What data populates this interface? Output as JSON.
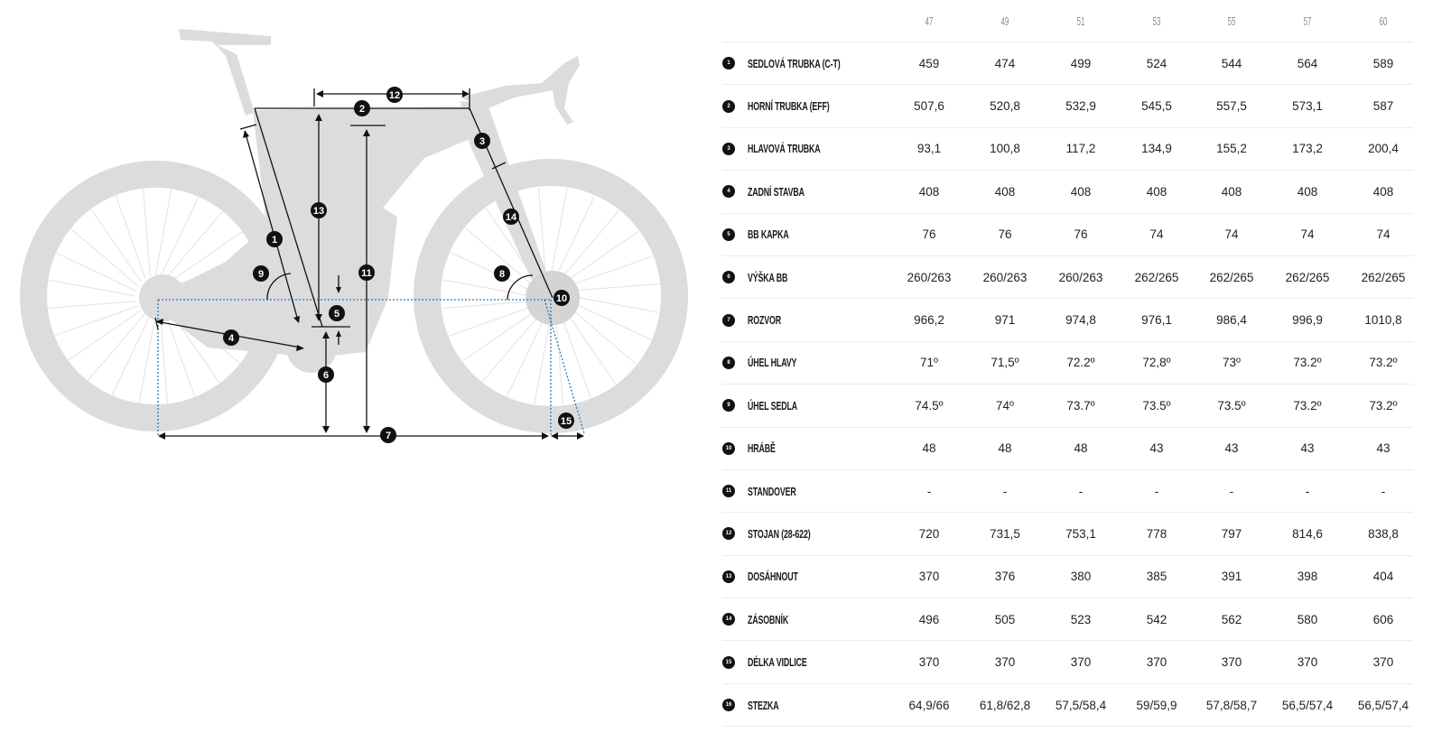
{
  "diagram": {
    "markers": [
      "1",
      "2",
      "3",
      "4",
      "5",
      "6",
      "7",
      "8",
      "9",
      "10",
      "11",
      "12",
      "13",
      "14",
      "15"
    ],
    "colors": {
      "bike": "#dcdcdd",
      "lines": "#111111",
      "dotted": "#2a7ab8"
    }
  },
  "table": {
    "sizes": [
      "47",
      "49",
      "51",
      "53",
      "55",
      "57",
      "60"
    ],
    "rows": [
      {
        "num": "1",
        "label": "SEDLOVÁ TRUBKA (C-T)",
        "values": [
          "459",
          "474",
          "499",
          "524",
          "544",
          "564",
          "589"
        ]
      },
      {
        "num": "2",
        "label": "HORNÍ TRUBKA (EFF)",
        "values": [
          "507,6",
          "520,8",
          "532,9",
          "545,5",
          "557,5",
          "573,1",
          "587"
        ]
      },
      {
        "num": "3",
        "label": "HLAVOVÁ TRUBKA",
        "values": [
          "93,1",
          "100,8",
          "117,2",
          "134,9",
          "155,2",
          "173,2",
          "200,4"
        ]
      },
      {
        "num": "4",
        "label": "ZADNÍ STAVBA",
        "values": [
          "408",
          "408",
          "408",
          "408",
          "408",
          "408",
          "408"
        ]
      },
      {
        "num": "5",
        "label": "BB KAPKA",
        "values": [
          "76",
          "76",
          "76",
          "74",
          "74",
          "74",
          "74"
        ]
      },
      {
        "num": "6",
        "label": "VÝŠKA BB",
        "values": [
          "260/263",
          "260/263",
          "260/263",
          "262/265",
          "262/265",
          "262/265",
          "262/265"
        ]
      },
      {
        "num": "7",
        "label": "ROZVOR",
        "values": [
          "966,2",
          "971",
          "974,8",
          "976,1",
          "986,4",
          "996,9",
          "1010,8"
        ]
      },
      {
        "num": "8",
        "label": "ÚHEL HLAVY",
        "values": [
          "71º",
          "71,5º",
          "72.2º",
          "72,8º",
          "73º",
          "73.2º",
          "73.2º"
        ]
      },
      {
        "num": "9",
        "label": "ÚHEL SEDLA",
        "values": [
          "74.5º",
          "74º",
          "73.7º",
          "73.5º",
          "73.5º",
          "73.2º",
          "73.2º"
        ]
      },
      {
        "num": "10",
        "label": "HRÁBĚ",
        "values": [
          "48",
          "48",
          "48",
          "43",
          "43",
          "43",
          "43"
        ]
      },
      {
        "num": "11",
        "label": "STANDOVER",
        "values": [
          "-",
          "-",
          "-",
          "-",
          "-",
          "-",
          "-"
        ]
      },
      {
        "num": "12",
        "label": "STOJAN (28-622)",
        "values": [
          "720",
          "731,5",
          "753,1",
          "778",
          "797",
          "814,6",
          "838,8"
        ]
      },
      {
        "num": "13",
        "label": "DOSÁHNOUT",
        "values": [
          "370",
          "376",
          "380",
          "385",
          "391",
          "398",
          "404"
        ]
      },
      {
        "num": "14",
        "label": "ZÁSOBNÍK",
        "values": [
          "496",
          "505",
          "523",
          "542",
          "562",
          "580",
          "606"
        ]
      },
      {
        "num": "15",
        "label": "DÉLKA VIDLICE",
        "values": [
          "370",
          "370",
          "370",
          "370",
          "370",
          "370",
          "370"
        ]
      },
      {
        "num": "16",
        "label": "STEZKA",
        "values": [
          "64,9/66",
          "61,8/62,8",
          "57,5/58,4",
          "59/59,9",
          "57,8/58,7",
          "56,5/57,4",
          "56,5/57,4"
        ]
      }
    ]
  }
}
